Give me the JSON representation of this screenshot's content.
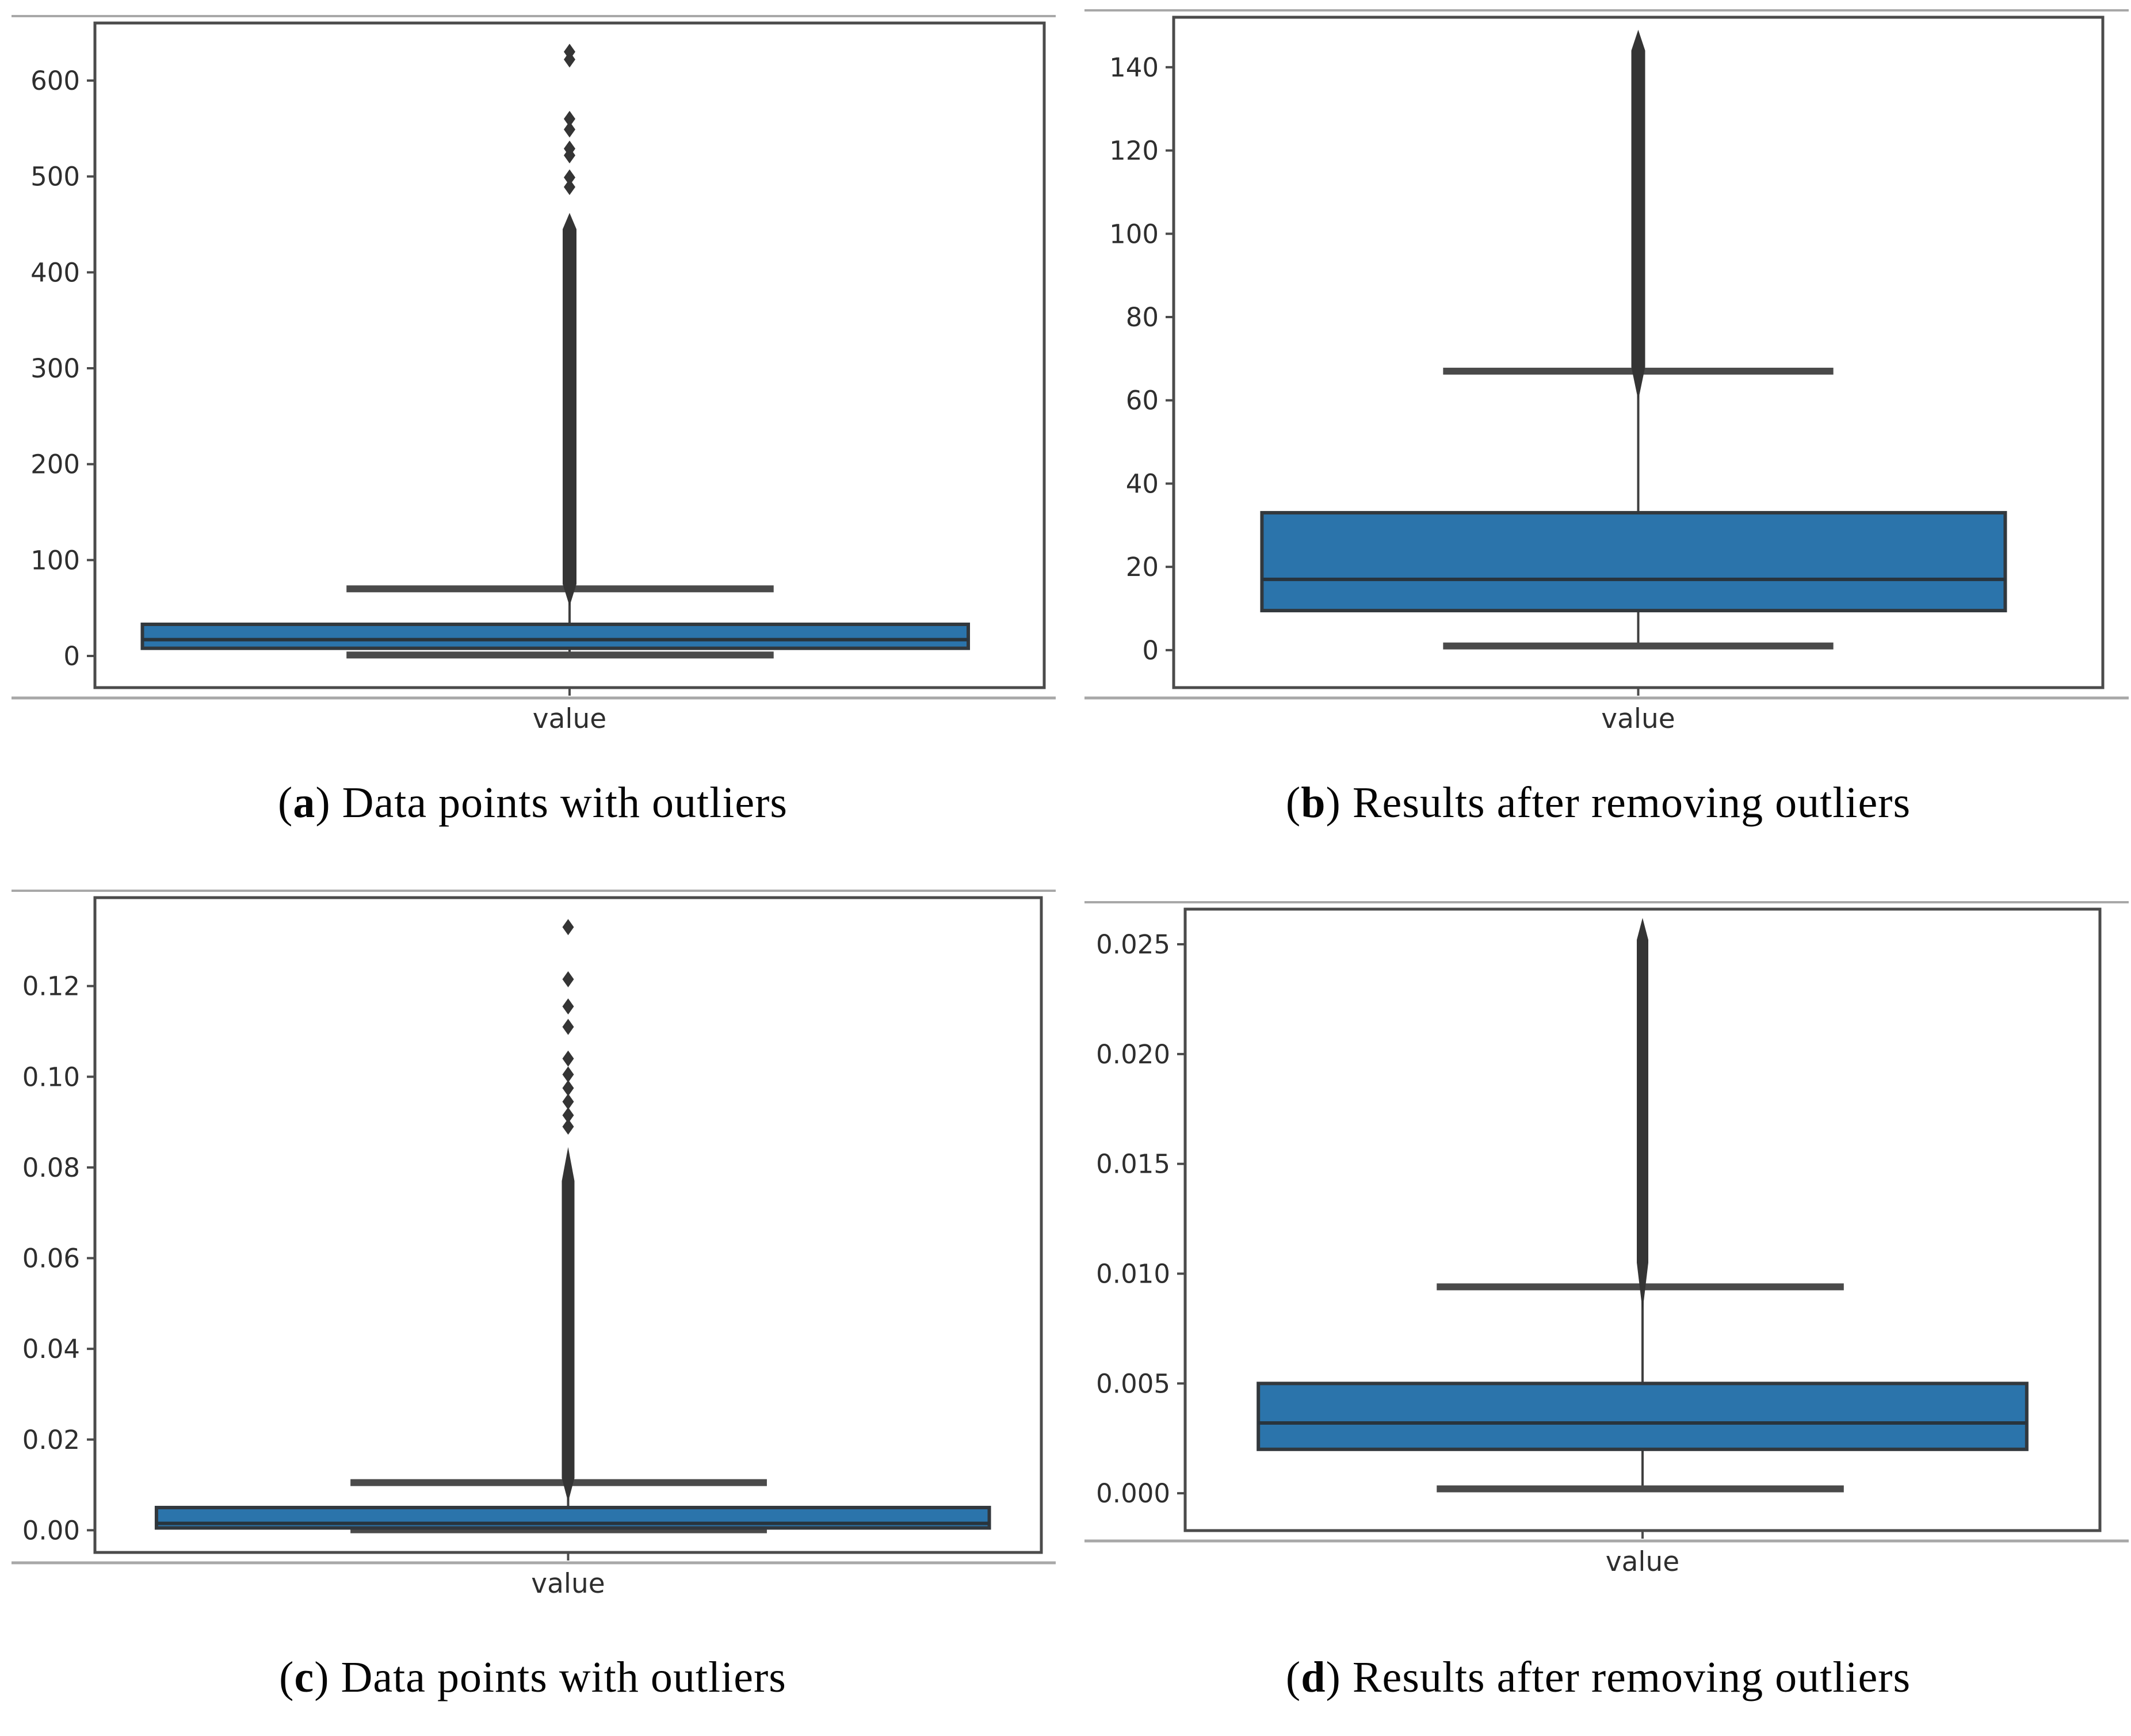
{
  "style": {
    "box_fill": "#2b74ab",
    "box_edge": "#32383d",
    "median_line": "#28343d",
    "whisker": "#3f3f3f",
    "cap": "#4a4a4a",
    "outlier": "#343434",
    "frame": "#4b4b4b",
    "tick_label": "#2e2e2e",
    "panel_rule": "#a8a8a8"
  },
  "chart_data": [
    {
      "type": "box",
      "panel": "a",
      "caption": {
        "open": "(",
        "letter": "a",
        "close": ")",
        "text": " Data points with outliers"
      },
      "xlabel": "value",
      "categories": [
        "value"
      ],
      "ylim": [
        -33,
        660
      ],
      "ytick_values": [
        0,
        100,
        200,
        300,
        400,
        500,
        600
      ],
      "ytick_labels": [
        "0",
        "100",
        "200",
        "300",
        "400",
        "500",
        "600"
      ],
      "box": {
        "q1": 8,
        "median": 17,
        "q3": 33,
        "whisker_low": 1,
        "whisker_high": 70
      },
      "outlier_strip": {
        "from": 75,
        "to": 445,
        "tip_low": 52,
        "tip_high": 462
      },
      "outlier_points": [
        630,
        622,
        560,
        549,
        529,
        522,
        499,
        489
      ]
    },
    {
      "type": "box",
      "panel": "b",
      "caption": {
        "open": "(",
        "letter": "b",
        "close": ")",
        "text": " Results after removing outliers"
      },
      "xlabel": "value",
      "categories": [
        "value"
      ],
      "ylim": [
        -9,
        152
      ],
      "ytick_values": [
        0,
        20,
        40,
        60,
        80,
        100,
        120,
        140
      ],
      "ytick_labels": [
        "0",
        "20",
        "40",
        "60",
        "80",
        "100",
        "120",
        "140"
      ],
      "box": {
        "q1": 9.5,
        "median": 17,
        "q3": 33,
        "whisker_low": 1,
        "whisker_high": 67
      },
      "outlier_strip": {
        "from": 68,
        "to": 144,
        "tip_low": 60,
        "tip_high": 149
      },
      "outlier_points": []
    },
    {
      "type": "box",
      "panel": "c",
      "caption": {
        "open": "(",
        "letter": "c",
        "close": ")",
        "text": " Data points with outliers"
      },
      "xlabel": "value",
      "categories": [
        "value"
      ],
      "ylim": [
        -0.0049,
        0.1395
      ],
      "ytick_values": [
        0.0,
        0.02,
        0.04,
        0.06,
        0.08,
        0.1,
        0.12
      ],
      "ytick_labels": [
        "0.00",
        "0.02",
        "0.04",
        "0.06",
        "0.08",
        "0.10",
        "0.12"
      ],
      "box": {
        "q1": 0.0005,
        "median": 0.0015,
        "q3": 0.005,
        "whisker_low": 0.0001,
        "whisker_high": 0.0105
      },
      "outlier_strip": {
        "from": 0.0115,
        "to": 0.077,
        "tip_low": 0.0062,
        "tip_high": 0.0845
      },
      "outlier_points": [
        0.133,
        0.1215,
        0.1155,
        0.111,
        0.104,
        0.1005,
        0.0975,
        0.0945,
        0.0915,
        0.089
      ]
    },
    {
      "type": "box",
      "panel": "d",
      "caption": {
        "open": "(",
        "letter": "d",
        "close": ")",
        "text": " Results after removing outliers"
      },
      "xlabel": "value",
      "categories": [
        "value"
      ],
      "ylim": [
        -0.0017,
        0.0266
      ],
      "ytick_values": [
        0.0,
        0.005,
        0.01,
        0.015,
        0.02,
        0.025
      ],
      "ytick_labels": [
        "0.000",
        "0.005",
        "0.010",
        "0.015",
        "0.020",
        "0.025"
      ],
      "box": {
        "q1": 0.002,
        "median": 0.0032,
        "q3": 0.005,
        "whisker_low": 0.0002,
        "whisker_high": 0.0094
      },
      "outlier_strip": {
        "from": 0.0105,
        "to": 0.0252,
        "tip_low": 0.0083,
        "tip_high": 0.0262
      },
      "outlier_points": []
    }
  ]
}
